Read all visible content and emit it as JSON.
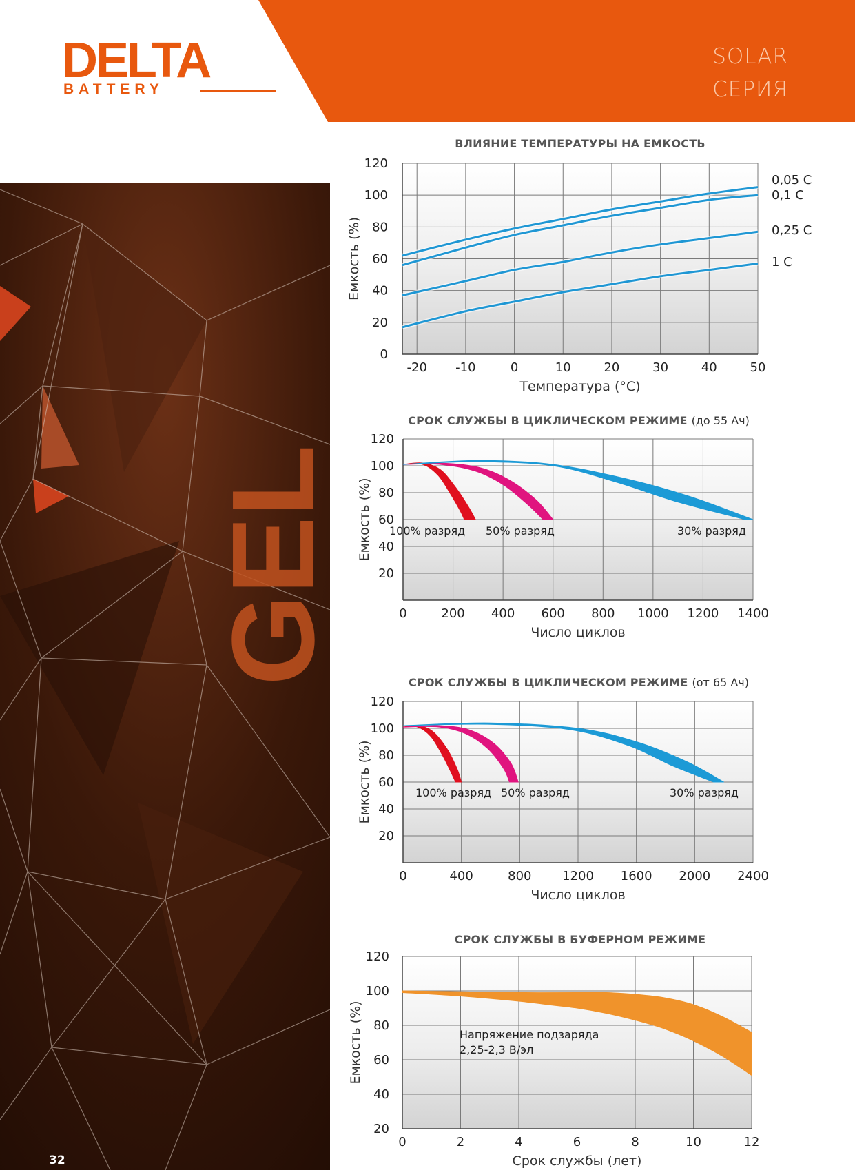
{
  "header": {
    "logo_word": "DELTA",
    "logo_sub": "BATTERY",
    "series_line1": "SOLAR",
    "series_line2": "СЕРИЯ",
    "accent_color": "#e8580e"
  },
  "side_panel": {
    "watermark_text": "GEL"
  },
  "page_number": "32",
  "chart_data": [
    {
      "type": "line",
      "title": "ВЛИЯНИЕ ТЕМПЕРАТУРЫ НА ЕМКОСТЬ",
      "xlabel": "Температура (°C)",
      "ylabel": "Емкость (%)",
      "xlim": [
        -23,
        50
      ],
      "ylim": [
        0,
        120
      ],
      "xticks": [
        -20,
        -10,
        0,
        10,
        20,
        30,
        40,
        50
      ],
      "yticks": [
        0,
        20,
        40,
        60,
        80,
        100,
        120
      ],
      "grid": true,
      "series": [
        {
          "name": "0,05 C",
          "x": [
            -23,
            -10,
            0,
            10,
            20,
            30,
            40,
            50
          ],
          "y": [
            62,
            72,
            79,
            85,
            91,
            96,
            101,
            105
          ],
          "color": "#1f97d4"
        },
        {
          "name": "0,1 C",
          "x": [
            -23,
            -10,
            0,
            10,
            20,
            30,
            40,
            50
          ],
          "y": [
            56,
            67,
            75,
            81,
            87,
            92,
            97,
            100
          ],
          "color": "#1f97d4"
        },
        {
          "name": "0,25 C",
          "x": [
            -23,
            -10,
            0,
            10,
            20,
            30,
            40,
            50
          ],
          "y": [
            37,
            46,
            53,
            58,
            64,
            69,
            73,
            77
          ],
          "color": "#1f97d4"
        },
        {
          "name": "1 C",
          "x": [
            -23,
            -10,
            0,
            10,
            20,
            30,
            40,
            50
          ],
          "y": [
            17,
            27,
            33,
            39,
            44,
            49,
            53,
            57
          ],
          "color": "#1f97d4"
        }
      ]
    },
    {
      "type": "area",
      "title": "СРОК СЛУЖБЫ В ЦИКЛИЧЕСКОМ РЕЖИМЕ",
      "title_note": "(до 55 Ач)",
      "xlabel": "Число циклов",
      "ylabel": "Емкость (%)",
      "xlim": [
        0,
        1400
      ],
      "ylim": [
        0,
        120
      ],
      "xticks": [
        0,
        200,
        400,
        600,
        800,
        1000,
        1200,
        1400
      ],
      "yticks": [
        20,
        40,
        60,
        80,
        100,
        120
      ],
      "grid": true,
      "series": [
        {
          "name": "100% разряд",
          "color": "#e0101f",
          "upper": {
            "x": [
              0,
              80,
              150,
              210,
              260,
              290
            ],
            "y": [
              101,
              102,
              97,
              84,
              70,
              60
            ]
          },
          "lower": {
            "x": [
              0,
              80,
              140,
              190,
              230,
              245
            ],
            "y": [
              101,
              101,
              93,
              79,
              66,
              60
            ]
          }
        },
        {
          "name": "50% разряд",
          "color": "#e0147f",
          "upper": {
            "x": [
              0,
              150,
              300,
              420,
              530,
              600
            ],
            "y": [
              101,
              102,
              99,
              90,
              75,
              60
            ]
          },
          "lower": {
            "x": [
              0,
              150,
              290,
              400,
              500,
              560
            ],
            "y": [
              101,
              101,
              96,
              86,
              71,
              60
            ]
          }
        },
        {
          "name": "30% разряд",
          "color": "#1c9ad6",
          "upper": {
            "x": [
              0,
              300,
              600,
              900,
              1150,
              1400
            ],
            "y": [
              101,
              104,
              101,
              90,
              77,
              60
            ]
          },
          "lower": {
            "x": [
              0,
              300,
              600,
              850,
              1100,
              1370
            ],
            "y": [
              101,
              103,
              100,
              88,
              73,
              60
            ]
          }
        }
      ]
    },
    {
      "type": "area",
      "title": "СРОК СЛУЖБЫ В ЦИКЛИЧЕСКОМ РЕЖИМЕ",
      "title_note": "(от 65 Ач)",
      "xlabel": "Число циклов",
      "ylabel": "Емкость (%)",
      "xlim": [
        0,
        2400
      ],
      "ylim": [
        0,
        120
      ],
      "xticks": [
        0,
        400,
        800,
        1200,
        1600,
        2000,
        2400
      ],
      "yticks": [
        20,
        40,
        60,
        80,
        100,
        120
      ],
      "grid": true,
      "series": [
        {
          "name": "100% разряд",
          "color": "#e0101f",
          "upper": {
            "x": [
              0,
              100,
              200,
              300,
              370,
              400
            ],
            "y": [
              101,
              102,
              98,
              85,
              70,
              60
            ]
          },
          "lower": {
            "x": [
              0,
              100,
              190,
              270,
              330,
              360
            ],
            "y": [
              101,
              101,
              94,
              80,
              67,
              60
            ]
          }
        },
        {
          "name": "50% разряд",
          "color": "#e0147f",
          "upper": {
            "x": [
              0,
              250,
              450,
              620,
              740,
              790
            ],
            "y": [
              101,
              102,
              99,
              89,
              74,
              60
            ]
          },
          "lower": {
            "x": [
              0,
              250,
              430,
              580,
              690,
              730
            ],
            "y": [
              101,
              101,
              96,
              85,
              70,
              60
            ]
          }
        },
        {
          "name": "30% разряд",
          "color": "#1c9ad6",
          "upper": {
            "x": [
              0,
              600,
              1200,
              1600,
              1950,
              2200
            ],
            "y": [
              102,
              104,
              100,
              90,
              75,
              60
            ]
          },
          "lower": {
            "x": [
              0,
              600,
              1150,
              1550,
              1850,
              2130
            ],
            "y": [
              102,
              103,
              99,
              87,
              72,
              60
            ]
          }
        }
      ]
    },
    {
      "type": "area",
      "title": "СРОК СЛУЖБЫ В БУФЕРНОМ РЕЖИМЕ",
      "xlabel": "Срок службы (лет)",
      "ylabel": "Емкость (%)",
      "xlim": [
        0,
        12
      ],
      "ylim": [
        20,
        120
      ],
      "xticks": [
        0,
        2,
        4,
        6,
        8,
        10,
        12
      ],
      "yticks": [
        20,
        40,
        60,
        80,
        100,
        120
      ],
      "grid": true,
      "annotation_line1": "Напряжение подзаряда",
      "annotation_line2": "2,25-2,3 В/эл",
      "series": [
        {
          "name": "",
          "color": "#f0932b",
          "upper": {
            "x": [
              0,
              2,
              4,
              6,
              7,
              8,
              9,
              10,
              11,
              12
            ],
            "y": [
              100,
              99.5,
              99,
              99,
              99,
              98,
              96,
              92,
              85,
              76
            ]
          },
          "lower": {
            "x": [
              0,
              2,
              4,
              5,
              6,
              7,
              8,
              9,
              10,
              11,
              12
            ],
            "y": [
              99,
              97,
              94,
              92,
              90,
              87,
              83,
              78,
              71,
              62,
              51
            ]
          }
        }
      ]
    }
  ]
}
